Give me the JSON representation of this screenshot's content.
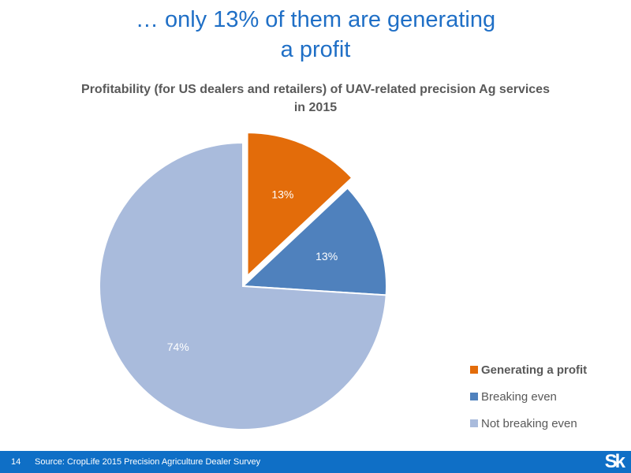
{
  "slide": {
    "title_line1": "… only 13% of them are generating",
    "title_line2": "a profit",
    "title_color": "#1F6FC6"
  },
  "chart_data": {
    "type": "pie",
    "title_line1": "Profitability (for US dealers and retailers) of UAV-related precision Ag services",
    "title_line2": "in 2015",
    "slices": [
      {
        "name": "Generating a profit",
        "value": 13,
        "label": "13%",
        "color": "#E36C0A",
        "exploded": true,
        "legend_bold": true
      },
      {
        "name": "Breaking even",
        "value": 13,
        "label": "13%",
        "color": "#4F81BD",
        "exploded": false,
        "legend_bold": false
      },
      {
        "name": "Not breaking even",
        "value": 74,
        "label": "74%",
        "color": "#A9BBDC",
        "exploded": false,
        "legend_bold": false
      }
    ],
    "start_angle": "12 o'clock",
    "direction": "clockwise",
    "legend_position": "bottom-right"
  },
  "footer": {
    "page_number": "14",
    "source": "Source: CropLife 2015 Precision Agriculture Dealer Survey",
    "logo": "Sk",
    "bar_color": "#0F6FC6"
  }
}
